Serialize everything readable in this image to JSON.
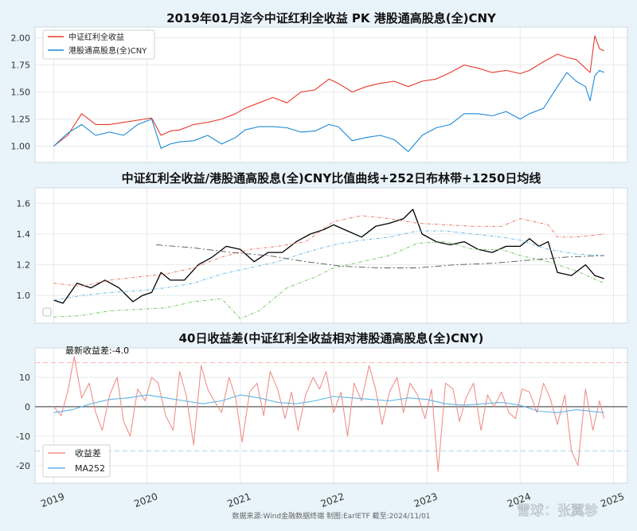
{
  "chart_data": [
    {
      "type": "line",
      "title": "2019年01月迄今中证红利全收益 PK 港股通高股息(全)CNY",
      "xlabel": "",
      "ylabel": "",
      "ylim": [
        0.85,
        2.1
      ],
      "yticks": [
        "1.00",
        "1.25",
        "1.50",
        "1.75",
        "2.00"
      ],
      "ytick_values": [
        1.0,
        1.25,
        1.5,
        1.75,
        2.0
      ],
      "grid": true,
      "legend": "top-left",
      "series": [
        {
          "name": "中证红利全收益",
          "color": "#e8392b",
          "x": [
            2019.0,
            2019.15,
            2019.3,
            2019.45,
            2019.6,
            2019.75,
            2019.9,
            2020.05,
            2020.15,
            2020.25,
            2020.35,
            2020.5,
            2020.65,
            2020.8,
            2020.95,
            2021.05,
            2021.2,
            2021.35,
            2021.5,
            2021.65,
            2021.8,
            2021.95,
            2022.05,
            2022.2,
            2022.35,
            2022.5,
            2022.65,
            2022.8,
            2022.95,
            2023.1,
            2023.25,
            2023.4,
            2023.55,
            2023.7,
            2023.85,
            2024.0,
            2024.1,
            2024.25,
            2024.4,
            2024.5,
            2024.6,
            2024.7,
            2024.75,
            2024.8,
            2024.85,
            2024.9
          ],
          "values": [
            1.0,
            1.1,
            1.3,
            1.2,
            1.2,
            1.22,
            1.24,
            1.26,
            1.1,
            1.14,
            1.15,
            1.2,
            1.22,
            1.25,
            1.3,
            1.35,
            1.4,
            1.45,
            1.4,
            1.5,
            1.52,
            1.62,
            1.58,
            1.5,
            1.55,
            1.58,
            1.6,
            1.55,
            1.6,
            1.62,
            1.68,
            1.75,
            1.72,
            1.68,
            1.7,
            1.67,
            1.7,
            1.78,
            1.85,
            1.82,
            1.8,
            1.72,
            1.68,
            2.02,
            1.9,
            1.88
          ]
        },
        {
          "name": "港股通高股息(全)CNY",
          "color": "#1c8ad6",
          "x": [
            2019.0,
            2019.15,
            2019.3,
            2019.45,
            2019.6,
            2019.75,
            2019.9,
            2020.05,
            2020.15,
            2020.25,
            2020.35,
            2020.5,
            2020.65,
            2020.8,
            2020.95,
            2021.05,
            2021.2,
            2021.35,
            2021.5,
            2021.65,
            2021.8,
            2021.95,
            2022.05,
            2022.2,
            2022.35,
            2022.5,
            2022.65,
            2022.8,
            2022.95,
            2023.1,
            2023.25,
            2023.4,
            2023.55,
            2023.7,
            2023.85,
            2024.0,
            2024.1,
            2024.25,
            2024.4,
            2024.5,
            2024.6,
            2024.7,
            2024.75,
            2024.8,
            2024.85,
            2024.9
          ],
          "values": [
            1.0,
            1.12,
            1.2,
            1.1,
            1.13,
            1.1,
            1.2,
            1.25,
            0.98,
            1.02,
            1.04,
            1.05,
            1.1,
            1.02,
            1.08,
            1.15,
            1.18,
            1.18,
            1.17,
            1.13,
            1.14,
            1.2,
            1.18,
            1.05,
            1.08,
            1.1,
            1.06,
            0.95,
            1.1,
            1.17,
            1.2,
            1.3,
            1.3,
            1.28,
            1.32,
            1.25,
            1.3,
            1.35,
            1.55,
            1.68,
            1.6,
            1.55,
            1.42,
            1.65,
            1.7,
            1.68
          ]
        }
      ]
    },
    {
      "type": "line",
      "title": "中证红利全收益/港股通高股息(全)CNY比值曲线+252日布林带+1250日均线",
      "xlabel": "",
      "ylabel": "",
      "ylim": [
        0.82,
        1.7
      ],
      "yticks": [
        "1.0",
        "1.2",
        "1.4",
        "1.6"
      ],
      "ytick_values": [
        1.0,
        1.2,
        1.4,
        1.6
      ],
      "grid": true,
      "legend": "bottom-left",
      "series": [
        {
          "color": "#000000",
          "x": [
            2019.0,
            2019.1,
            2019.25,
            2019.4,
            2019.55,
            2019.7,
            2019.85,
            2019.95,
            2020.05,
            2020.15,
            2020.25,
            2020.4,
            2020.55,
            2020.7,
            2020.85,
            2021.0,
            2021.15,
            2021.3,
            2021.45,
            2021.6,
            2021.75,
            2021.9,
            2022.0,
            2022.15,
            2022.3,
            2022.45,
            2022.6,
            2022.75,
            2022.85,
            2022.95,
            2023.1,
            2023.25,
            2023.4,
            2023.55,
            2023.7,
            2023.85,
            2024.0,
            2024.1,
            2024.2,
            2024.3,
            2024.4,
            2024.55,
            2024.7,
            2024.8,
            2024.9
          ],
          "values": [
            0.97,
            0.95,
            1.08,
            1.05,
            1.1,
            1.05,
            0.96,
            1.0,
            1.02,
            1.15,
            1.1,
            1.1,
            1.2,
            1.25,
            1.32,
            1.3,
            1.22,
            1.28,
            1.28,
            1.35,
            1.4,
            1.43,
            1.46,
            1.42,
            1.38,
            1.45,
            1.47,
            1.5,
            1.56,
            1.4,
            1.35,
            1.33,
            1.35,
            1.3,
            1.28,
            1.32,
            1.32,
            1.37,
            1.32,
            1.35,
            1.15,
            1.13,
            1.2,
            1.13,
            1.11
          ]
        },
        {
          "color": "#ee6a5f",
          "x": [
            2019.0,
            2019.3,
            2019.6,
            2019.9,
            2020.2,
            2020.5,
            2020.8,
            2021.1,
            2021.4,
            2021.7,
            2022.0,
            2022.3,
            2022.6,
            2022.9,
            2023.2,
            2023.5,
            2023.8,
            2024.0,
            2024.3,
            2024.4,
            2024.6,
            2024.9
          ],
          "values": [
            1.08,
            1.06,
            1.1,
            1.12,
            1.14,
            1.18,
            1.25,
            1.3,
            1.32,
            1.35,
            1.48,
            1.52,
            1.5,
            1.47,
            1.46,
            1.45,
            1.45,
            1.5,
            1.46,
            1.38,
            1.38,
            1.4
          ]
        },
        {
          "color": "#5fb4e6",
          "x": [
            2019.0,
            2019.3,
            2019.6,
            2019.9,
            2020.2,
            2020.5,
            2020.8,
            2021.1,
            2021.4,
            2021.7,
            2022.0,
            2022.3,
            2022.6,
            2022.9,
            2023.2,
            2023.5,
            2023.8,
            2024.0,
            2024.3,
            2024.6,
            2024.9
          ],
          "values": [
            0.97,
            1.0,
            1.02,
            1.03,
            1.05,
            1.08,
            1.14,
            1.18,
            1.22,
            1.28,
            1.33,
            1.36,
            1.38,
            1.42,
            1.42,
            1.4,
            1.38,
            1.36,
            1.3,
            1.27,
            1.26
          ]
        },
        {
          "color": "#6ac257",
          "x": [
            2019.0,
            2019.3,
            2019.6,
            2019.9,
            2020.2,
            2020.5,
            2020.8,
            2021.0,
            2021.2,
            2021.5,
            2021.8,
            2022.0,
            2022.3,
            2022.6,
            2022.9,
            2023.2,
            2023.5,
            2023.8,
            2024.0,
            2024.3,
            2024.6,
            2024.9
          ],
          "values": [
            0.86,
            0.87,
            0.9,
            0.91,
            0.92,
            0.96,
            0.98,
            0.85,
            0.9,
            1.05,
            1.12,
            1.18,
            1.22,
            1.26,
            1.34,
            1.35,
            1.3,
            1.3,
            1.26,
            1.22,
            1.16,
            1.08
          ]
        },
        {
          "color": "#555555",
          "x": [
            2020.1,
            2020.5,
            2020.9,
            2021.3,
            2021.7,
            2022.1,
            2022.5,
            2022.9,
            2023.3,
            2023.7,
            2024.1,
            2024.5,
            2024.9
          ],
          "values": [
            1.33,
            1.31,
            1.28,
            1.26,
            1.22,
            1.19,
            1.18,
            1.18,
            1.2,
            1.21,
            1.23,
            1.25,
            1.26
          ]
        }
      ]
    },
    {
      "type": "line",
      "title": "40日收益差(中证红利全收益相对港股通高股息(全)CNY)",
      "annotation": "最新收益差:-4.0",
      "xlabel": "",
      "ylabel": "",
      "ylim": [
        -26,
        20
      ],
      "yticks": [
        "-20",
        "-10",
        "0",
        "10"
      ],
      "ytick_values": [
        -20,
        -10,
        0,
        10
      ],
      "reference_lines": [
        15,
        -15
      ],
      "grid": true,
      "legend": "bottom-left",
      "series": [
        {
          "name": "收益差",
          "color": "#f0908a",
          "x": [
            2019.0,
            2019.08,
            2019.15,
            2019.22,
            2019.3,
            2019.38,
            2019.45,
            2019.52,
            2019.6,
            2019.68,
            2019.75,
            2019.82,
            2019.9,
            2019.98,
            2020.05,
            2020.12,
            2020.2,
            2020.28,
            2020.35,
            2020.42,
            2020.5,
            2020.58,
            2020.65,
            2020.72,
            2020.8,
            2020.88,
            2020.95,
            2021.02,
            2021.1,
            2021.18,
            2021.25,
            2021.32,
            2021.4,
            2021.48,
            2021.55,
            2021.62,
            2021.7,
            2021.78,
            2021.85,
            2021.92,
            2022.0,
            2022.08,
            2022.15,
            2022.22,
            2022.3,
            2022.38,
            2022.45,
            2022.52,
            2022.6,
            2022.68,
            2022.75,
            2022.82,
            2022.9,
            2022.98,
            2023.05,
            2023.12,
            2023.2,
            2023.28,
            2023.35,
            2023.42,
            2023.5,
            2023.58,
            2023.65,
            2023.72,
            2023.8,
            2023.88,
            2023.95,
            2024.02,
            2024.1,
            2024.18,
            2024.25,
            2024.32,
            2024.4,
            2024.48,
            2024.55,
            2024.62,
            2024.7,
            2024.78,
            2024.85,
            2024.9
          ],
          "values": [
            0,
            -3,
            5,
            17,
            3,
            8,
            -2,
            -8,
            4,
            10,
            -5,
            -10,
            6,
            2,
            10,
            8,
            -3,
            -8,
            12,
            4,
            -13,
            14,
            6,
            2,
            -2,
            10,
            3,
            -12,
            5,
            8,
            -3,
            12,
            6,
            -4,
            5,
            -8,
            4,
            10,
            6,
            12,
            -2,
            5,
            -10,
            8,
            2,
            14,
            6,
            -6,
            5,
            10,
            -2,
            8,
            4,
            -4,
            6,
            -22,
            8,
            6,
            -5,
            3,
            8,
            -8,
            4,
            0,
            5,
            -2,
            -4,
            6,
            5,
            -2,
            8,
            3,
            -6,
            4,
            -15,
            -20,
            6,
            -8,
            2,
            -4
          ]
        },
        {
          "name": "MA252",
          "color": "#5fb4e6",
          "x": [
            2019.0,
            2019.2,
            2019.4,
            2019.6,
            2019.8,
            2020.0,
            2020.2,
            2020.4,
            2020.6,
            2020.8,
            2021.0,
            2021.2,
            2021.4,
            2021.6,
            2021.8,
            2022.0,
            2022.2,
            2022.4,
            2022.6,
            2022.8,
            2023.0,
            2023.2,
            2023.4,
            2023.6,
            2023.8,
            2024.0,
            2024.2,
            2024.4,
            2024.6,
            2024.9
          ],
          "values": [
            -2,
            -1,
            1,
            2.5,
            3,
            4,
            3,
            2,
            1,
            2,
            4,
            3,
            1.5,
            1,
            2,
            3.5,
            3,
            2.5,
            2,
            3,
            2.5,
            1,
            0.5,
            1,
            1.5,
            0.5,
            -1.5,
            -2,
            -1,
            -2
          ]
        }
      ]
    }
  ],
  "xticks": [
    "2019",
    "2020",
    "2021",
    "2022",
    "2023",
    "2024",
    "2025"
  ],
  "xtick_values": [
    2019,
    2020,
    2021,
    2022,
    2023,
    2024,
    2025
  ],
  "xlim": [
    2018.8,
    2025.15
  ],
  "footer": "数据来源:Wind金融数据终端  制图:EarlETF 截至:2024/11/01",
  "watermark": "雪球：张翼轸"
}
